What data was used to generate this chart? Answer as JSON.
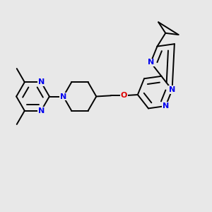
{
  "bg_color": "#e8e8e8",
  "bond_color": "#000000",
  "N_color": "#0000ee",
  "O_color": "#dd0000",
  "line_width": 1.4,
  "font_size": 8.0,
  "fig_width": 3.0,
  "fig_height": 3.0,
  "dpi": 100,
  "xlim": [
    0,
    1
  ],
  "ylim": [
    0,
    1
  ]
}
